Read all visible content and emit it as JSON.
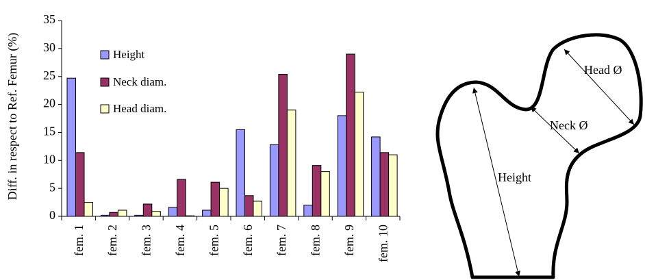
{
  "chart_data": {
    "type": "bar",
    "title": "",
    "xlabel": "",
    "ylabel": "Diff. in respect to Ref. Femur (%)",
    "ylim": [
      0,
      35
    ],
    "yticks": [
      0,
      5,
      10,
      15,
      20,
      25,
      30,
      35
    ],
    "grid": false,
    "legend_position": "top-left",
    "categories": [
      "fem. 1",
      "fem. 2",
      "fem. 3",
      "fem. 4",
      "fem. 5",
      "fem. 6",
      "fem. 7",
      "fem. 8",
      "fem. 9",
      "fem. 10"
    ],
    "series": [
      {
        "name": "Height",
        "color": "#9999ff",
        "values": [
          24.7,
          0.2,
          0.2,
          1.6,
          1.1,
          15.5,
          12.8,
          2.0,
          18.0,
          14.2
        ]
      },
      {
        "name": "Neck diam.",
        "color": "#993366",
        "values": [
          11.4,
          0.7,
          2.2,
          6.6,
          6.1,
          3.7,
          25.4,
          9.1,
          29.0,
          11.4
        ]
      },
      {
        "name": "Head diam.",
        "color": "#ffffcc",
        "values": [
          2.5,
          1.1,
          0.9,
          0.1,
          5.0,
          2.7,
          19.0,
          8.0,
          22.2,
          11.0
        ]
      }
    ]
  },
  "diagram": {
    "head_label": "Head Ø",
    "neck_label": "Neck Ø",
    "height_label": "Height"
  }
}
